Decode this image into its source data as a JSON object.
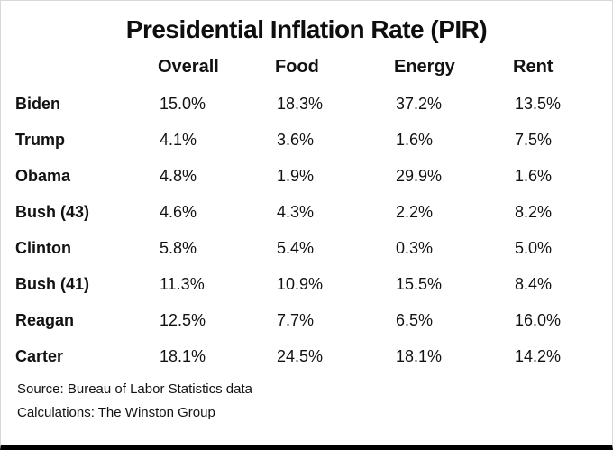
{
  "title": "Presidential Inflation Rate (PIR)",
  "chart_data": {
    "type": "table",
    "title": "Presidential Inflation Rate (PIR)",
    "columns": [
      "Overall",
      "Food",
      "Energy",
      "Rent"
    ],
    "rows": [
      {
        "label": "Biden",
        "values": [
          "15.0%",
          "18.3%",
          "37.2%",
          "13.5%"
        ]
      },
      {
        "label": "Trump",
        "values": [
          "4.1%",
          "3.6%",
          "1.6%",
          "7.5%"
        ]
      },
      {
        "label": "Obama",
        "values": [
          "4.8%",
          "1.9%",
          "29.9%",
          "1.6%"
        ]
      },
      {
        "label": "Bush (43)",
        "values": [
          "4.6%",
          "4.3%",
          "2.2%",
          "8.2%"
        ]
      },
      {
        "label": "Clinton",
        "values": [
          "5.8%",
          "5.4%",
          "0.3%",
          "5.0%"
        ]
      },
      {
        "label": "Bush (41)",
        "values": [
          "11.3%",
          "10.9%",
          "15.5%",
          "8.4%"
        ]
      },
      {
        "label": "Reagan",
        "values": [
          "12.5%",
          "7.7%",
          "6.5%",
          "16.0%"
        ]
      },
      {
        "label": "Carter",
        "values": [
          "18.1%",
          "24.5%",
          "18.1%",
          "14.2%"
        ]
      }
    ],
    "source": "Source: Bureau of Labor Statistics data",
    "calculations": "Calculations: The Winston Group",
    "accent_color": "#000000",
    "text_color": "#121212"
  }
}
